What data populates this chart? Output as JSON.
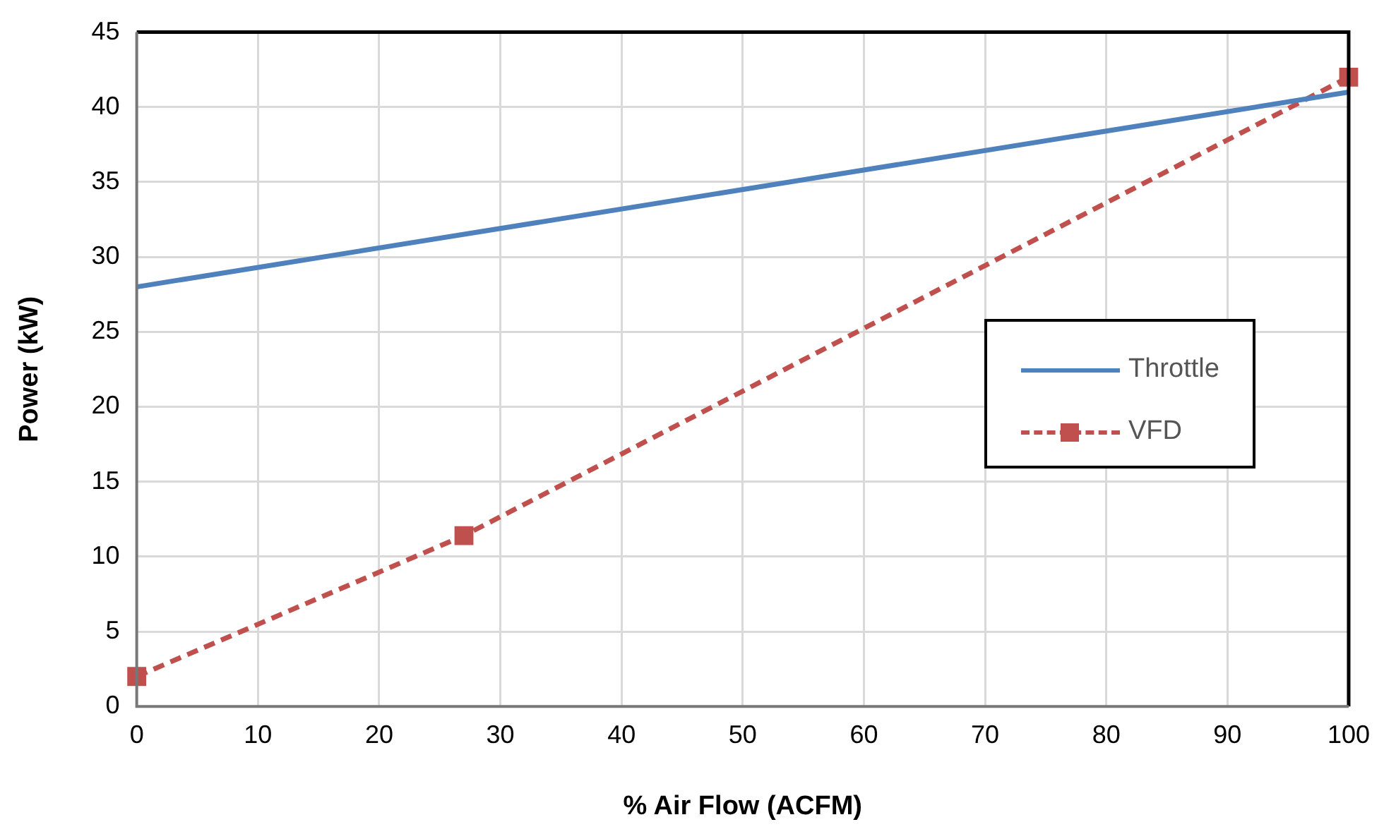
{
  "chart_data": {
    "type": "line",
    "xlabel": "% Air Flow (ACFM)",
    "ylabel": "Power (kW)",
    "xlim": [
      0,
      100
    ],
    "xticks": [
      0,
      10,
      20,
      30,
      40,
      50,
      60,
      70,
      80,
      90,
      100
    ],
    "ylim": [
      0,
      45
    ],
    "yticks": [
      0,
      5,
      10,
      15,
      20,
      25,
      30,
      35,
      40,
      45
    ],
    "grid": true,
    "legend": "right",
    "series": [
      {
        "name": "Throttle",
        "color": "#4f81bd",
        "x": [
          0,
          100
        ],
        "values": [
          28,
          41
        ],
        "line_style": "solid",
        "marker": "none"
      },
      {
        "name": "VFD",
        "color": "#c0504d",
        "x": [
          0,
          27,
          100
        ],
        "values": [
          2,
          11.4,
          42
        ],
        "line_style": "dashed",
        "marker": "square"
      }
    ]
  }
}
